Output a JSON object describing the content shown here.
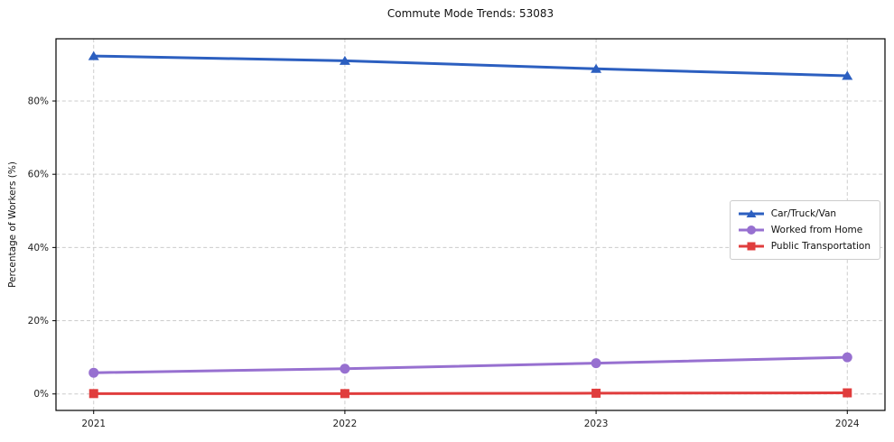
{
  "chart_data": {
    "type": "line",
    "title": "Commute Mode Trends: 53083",
    "xlabel": "",
    "ylabel": "Percentage of Workers (%)",
    "x": [
      2021,
      2022,
      2023,
      2024
    ],
    "xtick_labels": [
      "2021",
      "2022",
      "2023",
      "2024"
    ],
    "yticks": [
      0,
      20,
      40,
      60,
      80
    ],
    "ytick_labels": [
      "0%",
      "20%",
      "40%",
      "60%",
      "80%"
    ],
    "xlim": [
      2020.85,
      2024.15
    ],
    "ylim": [
      -4.5,
      97
    ],
    "grid": true,
    "grid_style": "dashed",
    "legend_position": "center-right",
    "series": [
      {
        "name": "Car/Truck/Van",
        "color": "#2c5fc0",
        "marker": "triangle",
        "values": [
          92.3,
          91.0,
          88.8,
          86.9
        ]
      },
      {
        "name": "Worked from Home",
        "color": "#9770d0",
        "marker": "circle",
        "values": [
          5.8,
          6.9,
          8.4,
          10.0
        ]
      },
      {
        "name": "Public Transportation",
        "color": "#e03d3d",
        "marker": "square",
        "values": [
          0.1,
          0.1,
          0.2,
          0.3
        ]
      }
    ],
    "colors": {
      "grid": "#cccccc",
      "spine": "#000000",
      "text": "#222222",
      "background": "#ffffff",
      "legend_border": "#cccccc"
    }
  }
}
